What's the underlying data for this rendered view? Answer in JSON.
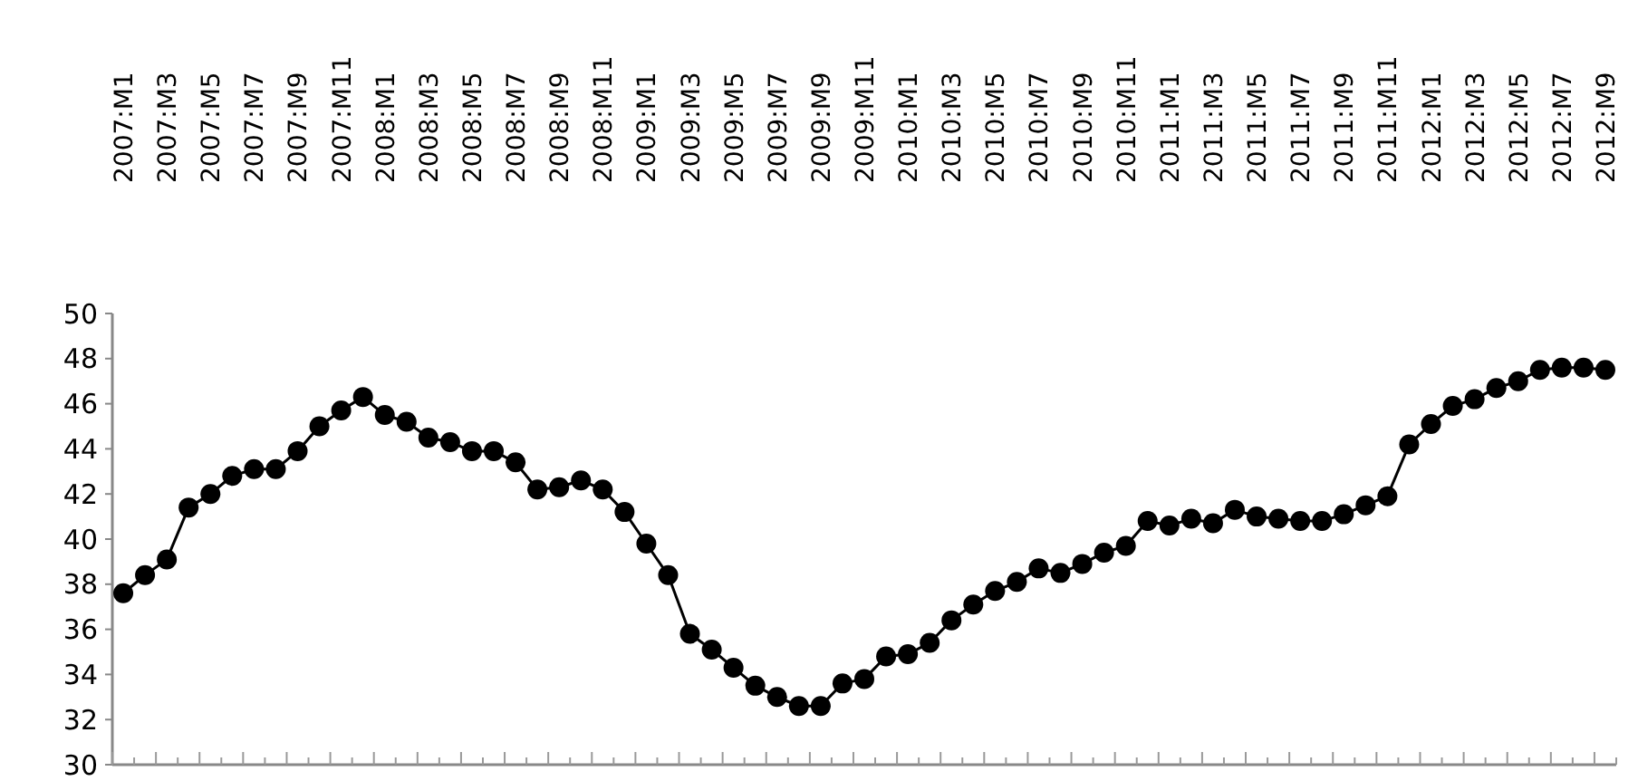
{
  "chart_data": {
    "type": "line",
    "categories": [
      "2007:M1",
      null,
      "2007:M3",
      null,
      "2007:M5",
      null,
      "2007:M7",
      null,
      "2007:M9",
      null,
      "2007:M11",
      null,
      "2008:M1",
      null,
      "2008:M3",
      null,
      "2008:M5",
      null,
      "2008:M7",
      null,
      "2008:M9",
      null,
      "2008:M11",
      null,
      "2009:M1",
      null,
      "2009:M3",
      null,
      "2009:M5",
      null,
      "2009:M7",
      null,
      "2009:M9",
      null,
      "2009:M11",
      null,
      "2010:M1",
      null,
      "2010:M3",
      null,
      "2010:M5",
      null,
      "2010:M7",
      null,
      "2010:M9",
      null,
      "2010:M11",
      null,
      "2011:M1",
      null,
      "2011:M3",
      null,
      "2011:M5",
      null,
      "2011:M7",
      null,
      "2011:M9",
      null,
      "2011:M11",
      null,
      "2012:M1",
      null,
      "2012:M3",
      null,
      "2012:M5",
      null,
      "2012:M7",
      null,
      "2012:M9"
    ],
    "series": [
      {
        "color": "#000000",
        "values": [
          37.6,
          38.4,
          39.1,
          41.4,
          42.0,
          42.8,
          43.1,
          43.1,
          43.9,
          45.0,
          45.7,
          46.3,
          45.5,
          45.2,
          44.5,
          44.3,
          43.9,
          43.9,
          43.4,
          42.2,
          42.3,
          42.6,
          42.2,
          41.2,
          39.8,
          38.4,
          35.8,
          35.1,
          34.3,
          33.5,
          33.0,
          32.6,
          32.6,
          33.6,
          33.8,
          34.8,
          34.9,
          35.4,
          36.4,
          37.1,
          37.7,
          38.1,
          38.7,
          38.5,
          38.9,
          39.4,
          39.7,
          40.8,
          40.6,
          40.9,
          40.7,
          41.3,
          41.0,
          40.9,
          40.8,
          40.8,
          41.1,
          41.5,
          41.9,
          44.2,
          45.1,
          45.9,
          46.2,
          46.7,
          47.0,
          47.5,
          47.6,
          47.6,
          47.5
        ]
      }
    ],
    "ylim": [
      30,
      50
    ],
    "yticks": [
      30,
      32,
      34,
      36,
      38,
      40,
      42,
      44,
      46,
      48,
      50
    ],
    "grid": false,
    "marker": "circle",
    "line_style": "solid"
  }
}
